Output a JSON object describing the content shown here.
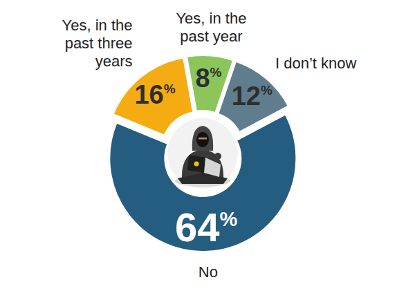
{
  "chart_data": {
    "type": "pie",
    "categories": [
      "Yes, in the past year",
      "I don’t know",
      "No",
      "Yes, in the past three years"
    ],
    "values": [
      8,
      12,
      64,
      16
    ],
    "value_labels": [
      "8%",
      "12%",
      "64%",
      "16%"
    ],
    "colors": [
      "#8cc55a",
      "#5f7d8d",
      "#255d80",
      "#f5ab12"
    ],
    "data_labels": true
  }
}
